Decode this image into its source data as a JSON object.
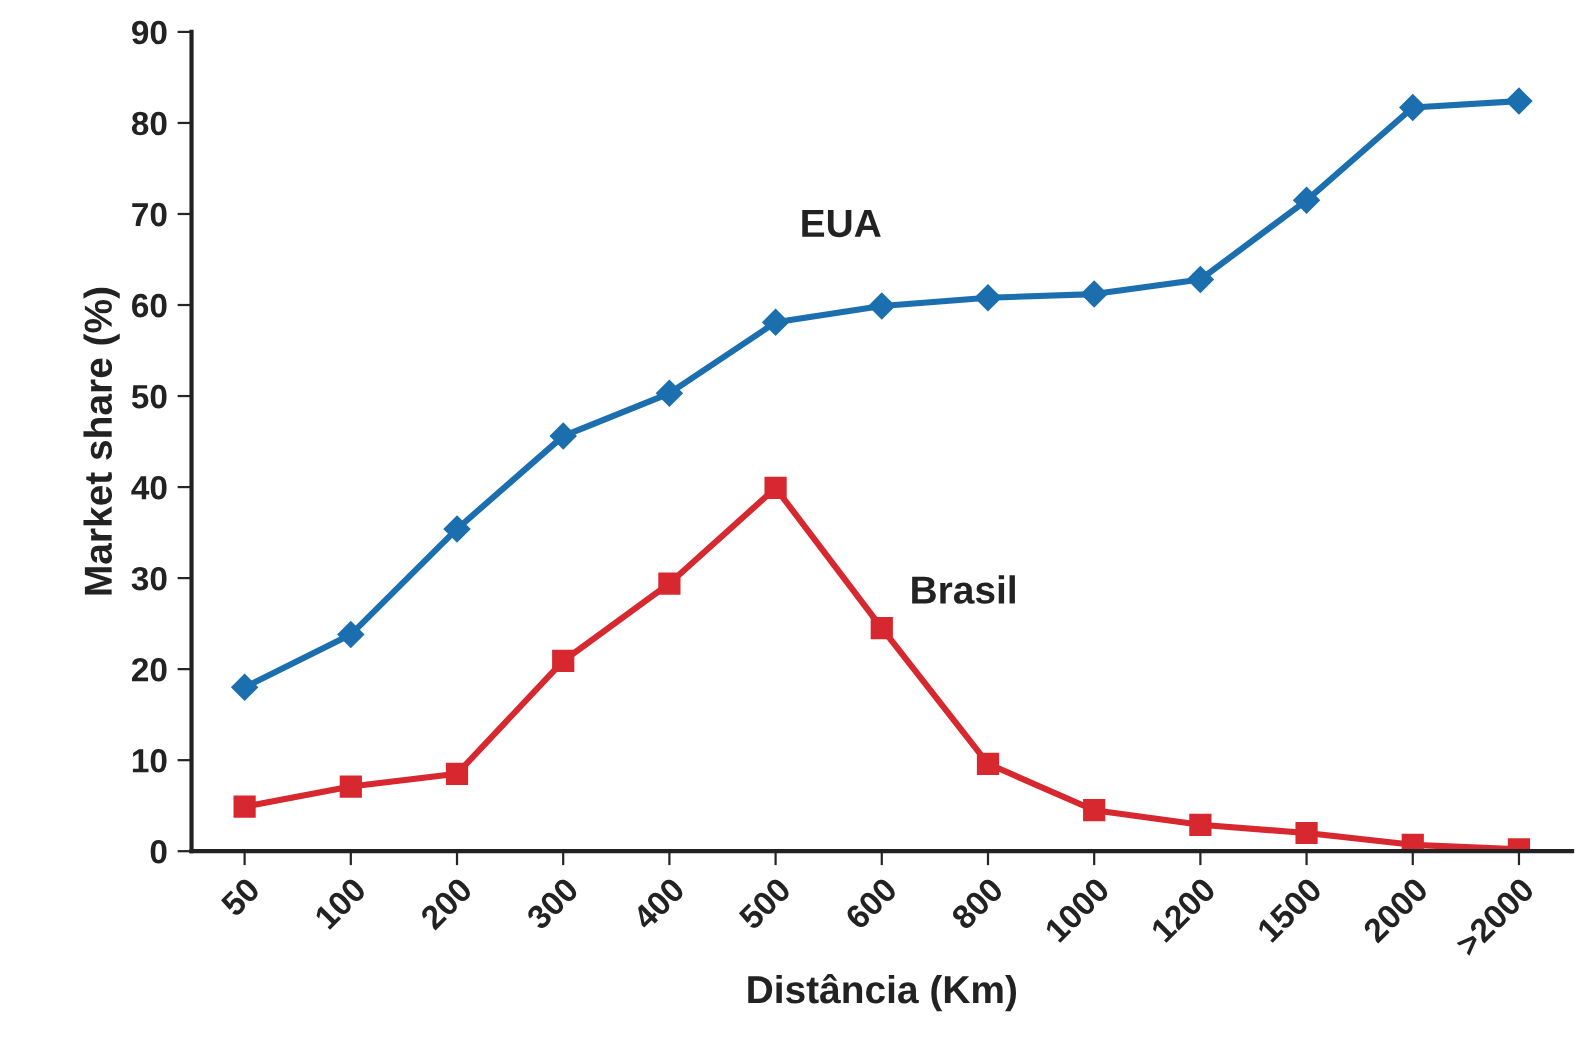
{
  "chart_data": {
    "type": "line",
    "xlabel": "Distância (Km)",
    "ylabel": "Market share (%)",
    "categories": [
      "50",
      "100",
      "200",
      "300",
      "400",
      "500",
      "600",
      "800",
      "1000",
      "1200",
      "1500",
      "2000",
      ">2000"
    ],
    "series": [
      {
        "name": "EUA",
        "color": "#1c6fae",
        "marker": "diamond",
        "values": [
          18,
          23.8,
          35.4,
          45.6,
          50.3,
          58.1,
          59.9,
          60.8,
          61.2,
          62.8,
          71.5,
          81.7,
          82.4
        ]
      },
      {
        "name": "Brasil",
        "color": "#d7282f",
        "marker": "square",
        "values": [
          4.9,
          7.1,
          8.5,
          20.9,
          29.4,
          39.9,
          24.5,
          9.6,
          4.5,
          2.9,
          2,
          0.7,
          0.2
        ]
      }
    ],
    "ylim": [
      0,
      90
    ],
    "yticks": [
      0,
      10,
      20,
      30,
      40,
      50,
      60,
      70,
      80,
      90
    ],
    "grid": false,
    "legend": false,
    "line_style": "solid"
  }
}
